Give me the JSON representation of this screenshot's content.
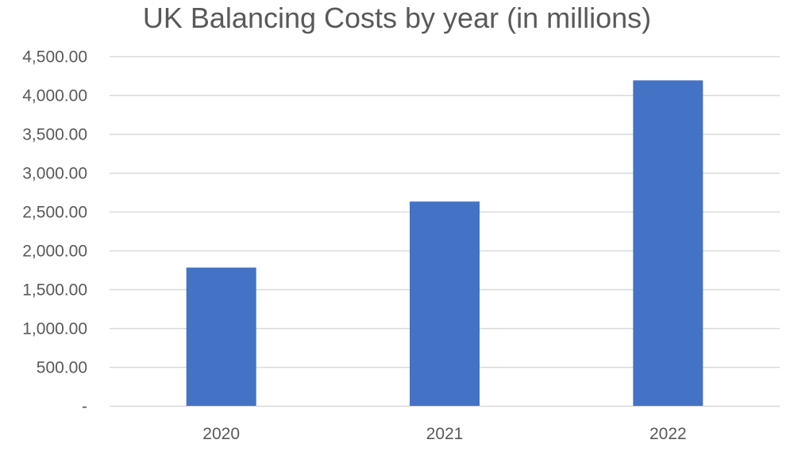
{
  "chart_data": {
    "type": "bar",
    "title": "UK Balancing Costs by year (in millions)",
    "xlabel": "",
    "ylabel": "",
    "categories": [
      "2020",
      "2021",
      "2022"
    ],
    "values": [
      1780,
      2630,
      4190
    ],
    "ylim": [
      0,
      4500
    ],
    "yticks": [
      0,
      500,
      1000,
      1500,
      2000,
      2500,
      3000,
      3500,
      4000,
      4500
    ],
    "ytick_labels": [
      "-",
      "500.00",
      "1,000.00",
      "1,500.00",
      "2,000.00",
      "2,500.00",
      "3,000.00",
      "3,500.00",
      "4,000.00",
      "4,500.00"
    ],
    "grid": true,
    "legend": "none",
    "bar_color": "#4472C4",
    "grid_color": "#D9D9D9",
    "text_color": "#595959"
  }
}
